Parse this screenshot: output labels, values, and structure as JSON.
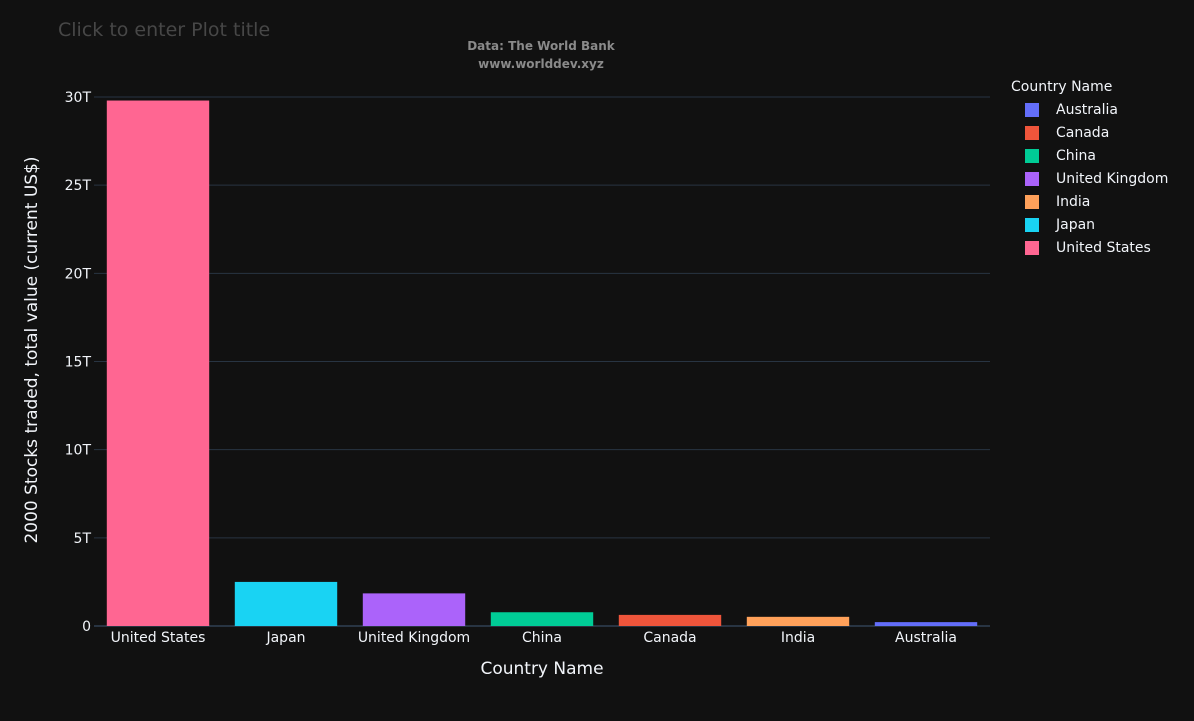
{
  "plot_title_placeholder": "Click to enter Plot title",
  "source": {
    "line1": "Data: The World Bank",
    "line2": "www.worlddev.xyz"
  },
  "legend": {
    "title": "Country Name",
    "items": [
      {
        "label": "Australia",
        "color": "#636efa"
      },
      {
        "label": "Canada",
        "color": "#ef553b"
      },
      {
        "label": "China",
        "color": "#00cc96"
      },
      {
        "label": "United Kingdom",
        "color": "#ab63fa"
      },
      {
        "label": "India",
        "color": "#ffa15a"
      },
      {
        "label": "Japan",
        "color": "#19d3f3"
      },
      {
        "label": "United States",
        "color": "#ff6692"
      }
    ]
  },
  "chart_data": {
    "type": "bar",
    "title": "",
    "xlabel": "Country Name",
    "ylabel": "2000 Stocks traded, total value (current US$)",
    "categories": [
      "United States",
      "Japan",
      "United Kingdom",
      "China",
      "Canada",
      "India",
      "Australia"
    ],
    "values": [
      29.8,
      2.5,
      1.85,
      0.78,
      0.63,
      0.52,
      0.22
    ],
    "value_unit": "trillion current US$",
    "colors": [
      "#ff6692",
      "#19d3f3",
      "#ab63fa",
      "#00cc96",
      "#ef553b",
      "#ffa15a",
      "#636efa"
    ],
    "ylim": [
      0,
      30
    ],
    "yticks": [
      0,
      5,
      10,
      15,
      20,
      25,
      30
    ],
    "ytick_labels": [
      "0",
      "5T",
      "10T",
      "15T",
      "20T",
      "25T",
      "30T"
    ],
    "grid": true,
    "legend_position": "right"
  },
  "theme": {
    "background": "#111111",
    "grid_color": "#283442",
    "text_color": "#f2f5fa"
  }
}
